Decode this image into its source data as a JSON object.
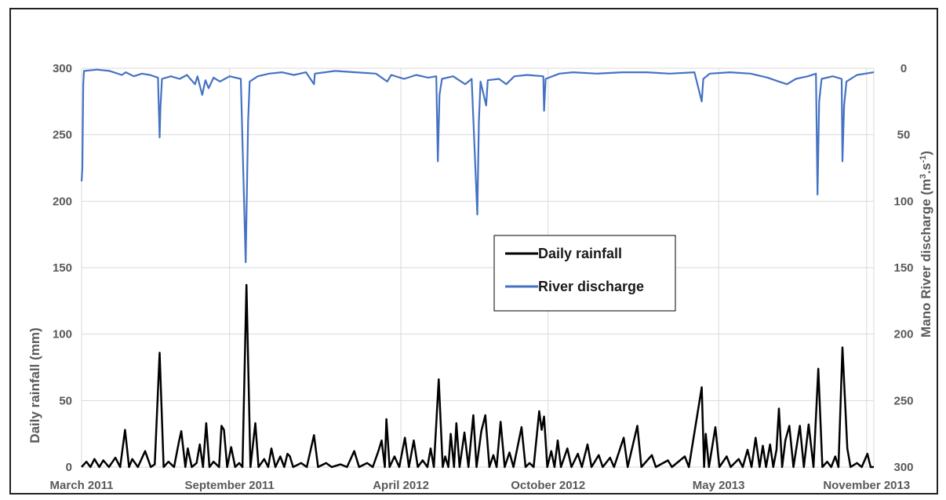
{
  "chart_data": {
    "type": "line",
    "title": "",
    "xlabel": "",
    "ylabel": "Daily rainfall (mm)",
    "y2label_parts": {
      "pre": "Mano River discharge (m",
      "sup1": "3",
      "mid": ".s",
      "sup2": "-1",
      "post": ")"
    },
    "ylim": [
      0,
      300
    ],
    "y2lim": [
      300,
      0
    ],
    "y2_inverted": true,
    "y_ticks": [
      "0",
      "50",
      "100",
      "150",
      "200",
      "250",
      "300"
    ],
    "y2_ticks": [
      "300",
      "250",
      "200",
      "150",
      "100",
      "50",
      "0"
    ],
    "x_range": [
      "2011-03-01",
      "2013-11-10"
    ],
    "x_ticks": [
      {
        "label": "March 2011",
        "date": "2011-03-01"
      },
      {
        "label": "September 2011",
        "date": "2011-09-01"
      },
      {
        "label": "April 2012",
        "date": "2012-04-01"
      },
      {
        "label": "October 2012",
        "date": "2012-10-01"
      },
      {
        "label": "May 2013",
        "date": "2013-05-01"
      },
      {
        "label": "November 2013",
        "date": "2013-11-01"
      }
    ],
    "grid": true,
    "legend_position": "center-right",
    "series": [
      {
        "name": "Daily rainfall",
        "axis": "left",
        "color": "#000000",
        "points": [
          [
            "2011-03-01",
            0
          ],
          [
            "2011-03-07",
            4
          ],
          [
            "2011-03-12",
            0
          ],
          [
            "2011-03-17",
            6
          ],
          [
            "2011-03-23",
            0
          ],
          [
            "2011-03-28",
            5
          ],
          [
            "2011-04-04",
            0
          ],
          [
            "2011-04-12",
            7
          ],
          [
            "2011-04-18",
            0
          ],
          [
            "2011-04-24",
            28
          ],
          [
            "2011-04-29",
            0
          ],
          [
            "2011-05-03",
            6
          ],
          [
            "2011-05-10",
            0
          ],
          [
            "2011-05-19",
            12
          ],
          [
            "2011-05-26",
            0
          ],
          [
            "2011-05-31",
            2
          ],
          [
            "2011-06-06",
            86
          ],
          [
            "2011-06-11",
            0
          ],
          [
            "2011-06-17",
            4
          ],
          [
            "2011-06-24",
            0
          ],
          [
            "2011-06-30",
            19
          ],
          [
            "2011-07-03",
            27
          ],
          [
            "2011-07-08",
            0
          ],
          [
            "2011-07-11",
            14
          ],
          [
            "2011-07-16",
            0
          ],
          [
            "2011-07-22",
            3
          ],
          [
            "2011-07-26",
            17
          ],
          [
            "2011-07-30",
            0
          ],
          [
            "2011-08-03",
            33
          ],
          [
            "2011-08-07",
            0
          ],
          [
            "2011-08-12",
            4
          ],
          [
            "2011-08-19",
            0
          ],
          [
            "2011-08-22",
            31
          ],
          [
            "2011-08-25",
            28
          ],
          [
            "2011-08-29",
            0
          ],
          [
            "2011-09-03",
            15
          ],
          [
            "2011-09-08",
            0
          ],
          [
            "2011-09-13",
            3
          ],
          [
            "2011-09-17",
            0
          ],
          [
            "2011-09-22",
            137
          ],
          [
            "2011-09-27",
            0
          ],
          [
            "2011-10-03",
            33
          ],
          [
            "2011-10-07",
            0
          ],
          [
            "2011-10-14",
            6
          ],
          [
            "2011-10-19",
            0
          ],
          [
            "2011-10-23",
            14
          ],
          [
            "2011-10-28",
            0
          ],
          [
            "2011-11-03",
            8
          ],
          [
            "2011-11-08",
            0
          ],
          [
            "2011-11-12",
            10
          ],
          [
            "2011-11-15",
            8
          ],
          [
            "2011-11-19",
            0
          ],
          [
            "2011-11-29",
            3
          ],
          [
            "2011-12-06",
            0
          ],
          [
            "2011-12-15",
            24
          ],
          [
            "2011-12-20",
            0
          ],
          [
            "2011-12-30",
            3
          ],
          [
            "2012-01-06",
            0
          ],
          [
            "2012-01-17",
            2
          ],
          [
            "2012-01-25",
            0
          ],
          [
            "2012-02-03",
            12
          ],
          [
            "2012-02-09",
            0
          ],
          [
            "2012-02-19",
            3
          ],
          [
            "2012-02-26",
            0
          ],
          [
            "2012-03-04",
            12
          ],
          [
            "2012-03-08",
            20
          ],
          [
            "2012-03-12",
            0
          ],
          [
            "2012-03-14",
            36
          ],
          [
            "2012-03-18",
            0
          ],
          [
            "2012-03-24",
            8
          ],
          [
            "2012-03-30",
            0
          ],
          [
            "2012-04-06",
            22
          ],
          [
            "2012-04-11",
            0
          ],
          [
            "2012-04-17",
            20
          ],
          [
            "2012-04-22",
            0
          ],
          [
            "2012-04-28",
            5
          ],
          [
            "2012-05-04",
            0
          ],
          [
            "2012-05-08",
            14
          ],
          [
            "2012-05-12",
            0
          ],
          [
            "2012-05-18",
            66
          ],
          [
            "2012-05-23",
            0
          ],
          [
            "2012-05-26",
            8
          ],
          [
            "2012-05-30",
            0
          ],
          [
            "2012-06-02",
            25
          ],
          [
            "2012-06-06",
            0
          ],
          [
            "2012-06-09",
            33
          ],
          [
            "2012-06-13",
            0
          ],
          [
            "2012-06-19",
            26
          ],
          [
            "2012-06-24",
            0
          ],
          [
            "2012-06-30",
            39
          ],
          [
            "2012-07-04",
            0
          ],
          [
            "2012-07-10",
            27
          ],
          [
            "2012-07-15",
            39
          ],
          [
            "2012-07-20",
            0
          ],
          [
            "2012-07-25",
            9
          ],
          [
            "2012-07-29",
            0
          ],
          [
            "2012-08-03",
            34
          ],
          [
            "2012-08-08",
            0
          ],
          [
            "2012-08-14",
            11
          ],
          [
            "2012-08-19",
            0
          ],
          [
            "2012-08-29",
            30
          ],
          [
            "2012-09-03",
            0
          ],
          [
            "2012-09-08",
            3
          ],
          [
            "2012-09-13",
            0
          ],
          [
            "2012-09-20",
            42
          ],
          [
            "2012-09-23",
            28
          ],
          [
            "2012-09-26",
            38
          ],
          [
            "2012-09-30",
            0
          ],
          [
            "2012-10-05",
            12
          ],
          [
            "2012-10-09",
            0
          ],
          [
            "2012-10-13",
            20
          ],
          [
            "2012-10-17",
            0
          ],
          [
            "2012-10-25",
            14
          ],
          [
            "2012-10-30",
            0
          ],
          [
            "2012-11-07",
            10
          ],
          [
            "2012-11-12",
            0
          ],
          [
            "2012-11-19",
            17
          ],
          [
            "2012-11-24",
            0
          ],
          [
            "2012-12-03",
            9
          ],
          [
            "2012-12-08",
            0
          ],
          [
            "2012-12-17",
            7
          ],
          [
            "2012-12-22",
            0
          ],
          [
            "2013-01-03",
            22
          ],
          [
            "2013-01-08",
            0
          ],
          [
            "2013-01-20",
            31
          ],
          [
            "2013-01-25",
            0
          ],
          [
            "2013-02-07",
            9
          ],
          [
            "2013-02-12",
            0
          ],
          [
            "2013-02-27",
            5
          ],
          [
            "2013-03-04",
            0
          ],
          [
            "2013-03-20",
            8
          ],
          [
            "2013-03-25",
            0
          ],
          [
            "2013-04-10",
            60
          ],
          [
            "2013-04-13",
            0
          ],
          [
            "2013-04-15",
            25
          ],
          [
            "2013-04-19",
            0
          ],
          [
            "2013-04-27",
            30
          ],
          [
            "2013-05-02",
            0
          ],
          [
            "2013-05-11",
            8
          ],
          [
            "2013-05-16",
            0
          ],
          [
            "2013-05-26",
            6
          ],
          [
            "2013-05-31",
            0
          ],
          [
            "2013-06-06",
            13
          ],
          [
            "2013-06-11",
            0
          ],
          [
            "2013-06-16",
            22
          ],
          [
            "2013-06-21",
            0
          ],
          [
            "2013-06-25",
            16
          ],
          [
            "2013-06-29",
            0
          ],
          [
            "2013-07-04",
            17
          ],
          [
            "2013-07-08",
            0
          ],
          [
            "2013-07-12",
            13
          ],
          [
            "2013-07-15",
            44
          ],
          [
            "2013-07-19",
            0
          ],
          [
            "2013-07-23",
            20
          ],
          [
            "2013-07-28",
            31
          ],
          [
            "2013-08-02",
            0
          ],
          [
            "2013-08-10",
            31
          ],
          [
            "2013-08-15",
            0
          ],
          [
            "2013-08-21",
            32
          ],
          [
            "2013-08-27",
            0
          ],
          [
            "2013-09-02",
            74
          ],
          [
            "2013-09-07",
            0
          ],
          [
            "2013-09-13",
            4
          ],
          [
            "2013-09-18",
            0
          ],
          [
            "2013-09-23",
            8
          ],
          [
            "2013-09-27",
            0
          ],
          [
            "2013-10-02",
            90
          ],
          [
            "2013-10-05",
            52
          ],
          [
            "2013-10-08",
            14
          ],
          [
            "2013-10-12",
            0
          ],
          [
            "2013-10-20",
            3
          ],
          [
            "2013-10-26",
            0
          ],
          [
            "2013-11-02",
            10
          ],
          [
            "2013-11-06",
            0
          ],
          [
            "2013-11-10",
            0
          ]
        ]
      },
      {
        "name": "River discharge",
        "axis": "right",
        "color": "#4472C4",
        "points": [
          [
            "2011-03-01",
            85
          ],
          [
            "2011-03-02",
            75
          ],
          [
            "2011-03-03",
            12
          ],
          [
            "2011-03-04",
            2
          ],
          [
            "2011-03-20",
            1
          ],
          [
            "2011-04-05",
            2
          ],
          [
            "2011-04-20",
            5
          ],
          [
            "2011-04-25",
            3
          ],
          [
            "2011-05-05",
            6
          ],
          [
            "2011-05-15",
            4
          ],
          [
            "2011-05-25",
            5
          ],
          [
            "2011-06-04",
            7
          ],
          [
            "2011-06-06",
            52
          ],
          [
            "2011-06-07",
            30
          ],
          [
            "2011-06-09",
            8
          ],
          [
            "2011-06-20",
            6
          ],
          [
            "2011-07-01",
            8
          ],
          [
            "2011-07-10",
            5
          ],
          [
            "2011-07-20",
            12
          ],
          [
            "2011-07-23",
            6
          ],
          [
            "2011-07-29",
            20
          ],
          [
            "2011-08-02",
            9
          ],
          [
            "2011-08-06",
            15
          ],
          [
            "2011-08-12",
            7
          ],
          [
            "2011-08-20",
            10
          ],
          [
            "2011-09-01",
            6
          ],
          [
            "2011-09-15",
            8
          ],
          [
            "2011-09-21",
            146
          ],
          [
            "2011-09-24",
            40
          ],
          [
            "2011-09-26",
            10
          ],
          [
            "2011-10-06",
            6
          ],
          [
            "2011-10-20",
            4
          ],
          [
            "2011-11-05",
            3
          ],
          [
            "2011-11-20",
            5
          ],
          [
            "2011-12-05",
            3
          ],
          [
            "2011-12-15",
            12
          ],
          [
            "2011-12-16",
            4
          ],
          [
            "2012-01-10",
            2
          ],
          [
            "2012-02-05",
            3
          ],
          [
            "2012-03-01",
            4
          ],
          [
            "2012-03-15",
            10
          ],
          [
            "2012-03-20",
            5
          ],
          [
            "2012-04-05",
            8
          ],
          [
            "2012-04-20",
            5
          ],
          [
            "2012-05-05",
            7
          ],
          [
            "2012-05-15",
            6
          ],
          [
            "2012-05-17",
            70
          ],
          [
            "2012-05-19",
            20
          ],
          [
            "2012-05-22",
            8
          ],
          [
            "2012-06-05",
            6
          ],
          [
            "2012-06-20",
            12
          ],
          [
            "2012-06-28",
            8
          ],
          [
            "2012-07-05",
            110
          ],
          [
            "2012-07-07",
            40
          ],
          [
            "2012-07-09",
            10
          ],
          [
            "2012-07-16",
            28
          ],
          [
            "2012-07-18",
            9
          ],
          [
            "2012-08-01",
            8
          ],
          [
            "2012-08-10",
            12
          ],
          [
            "2012-08-20",
            6
          ],
          [
            "2012-09-05",
            5
          ],
          [
            "2012-09-25",
            6
          ],
          [
            "2012-09-26",
            32
          ],
          [
            "2012-09-28",
            8
          ],
          [
            "2012-10-15",
            4
          ],
          [
            "2012-11-01",
            3
          ],
          [
            "2012-12-01",
            4
          ],
          [
            "2013-01-01",
            3
          ],
          [
            "2013-02-01",
            3
          ],
          [
            "2013-03-01",
            4
          ],
          [
            "2013-04-01",
            3
          ],
          [
            "2013-04-10",
            25
          ],
          [
            "2013-04-12",
            8
          ],
          [
            "2013-04-20",
            4
          ],
          [
            "2013-05-15",
            3
          ],
          [
            "2013-06-10",
            4
          ],
          [
            "2013-07-01",
            7
          ],
          [
            "2013-07-15",
            10
          ],
          [
            "2013-07-25",
            12
          ],
          [
            "2013-08-05",
            8
          ],
          [
            "2013-08-20",
            6
          ],
          [
            "2013-08-30",
            4
          ],
          [
            "2013-09-01",
            95
          ],
          [
            "2013-09-03",
            25
          ],
          [
            "2013-09-06",
            8
          ],
          [
            "2013-09-20",
            6
          ],
          [
            "2013-10-01",
            8
          ],
          [
            "2013-10-02",
            70
          ],
          [
            "2013-10-04",
            28
          ],
          [
            "2013-10-07",
            10
          ],
          [
            "2013-10-20",
            5
          ],
          [
            "2013-11-10",
            3
          ]
        ]
      }
    ]
  }
}
